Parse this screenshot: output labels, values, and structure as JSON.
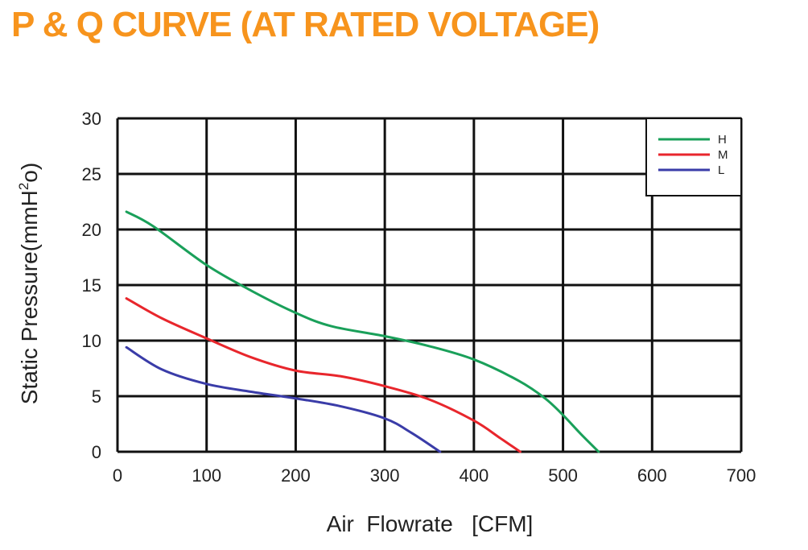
{
  "chart_data": {
    "type": "line",
    "title": "P & Q CURVE (AT RATED VOLTAGE)",
    "xlabel": "Air  Flowrate   [CFM]",
    "ylabel_main": "Static Pressure(mmH",
    "ylabel_sup": "2",
    "ylabel_tail": "o)",
    "xlim": [
      0,
      700
    ],
    "ylim": [
      0,
      30
    ],
    "xticks": [
      0,
      100,
      200,
      300,
      400,
      500,
      600,
      700
    ],
    "yticks": [
      0,
      5,
      10,
      15,
      20,
      25,
      30
    ],
    "grid": true,
    "legend_position": "top-right",
    "series": [
      {
        "name": "H",
        "color": "#1aa05a",
        "x": [
          10,
          40,
          100,
          150,
          200,
          240,
          300,
          350,
          400,
          450,
          480,
          500,
          520,
          540
        ],
        "y": [
          21.6,
          20.3,
          16.8,
          14.5,
          12.5,
          11.3,
          10.4,
          9.5,
          8.3,
          6.4,
          4.8,
          3.3,
          1.6,
          0
        ]
      },
      {
        "name": "M",
        "color": "#e8262c",
        "x": [
          10,
          50,
          100,
          150,
          200,
          250,
          300,
          350,
          400,
          430,
          452
        ],
        "y": [
          13.8,
          12.0,
          10.2,
          8.5,
          7.3,
          6.8,
          5.9,
          4.7,
          2.8,
          1.2,
          0
        ]
      },
      {
        "name": "L",
        "color": "#3a3ca8",
        "x": [
          10,
          50,
          100,
          150,
          200,
          250,
          300,
          330,
          362
        ],
        "y": [
          9.4,
          7.4,
          6.1,
          5.4,
          4.8,
          4.1,
          3.0,
          1.7,
          0
        ]
      }
    ]
  }
}
